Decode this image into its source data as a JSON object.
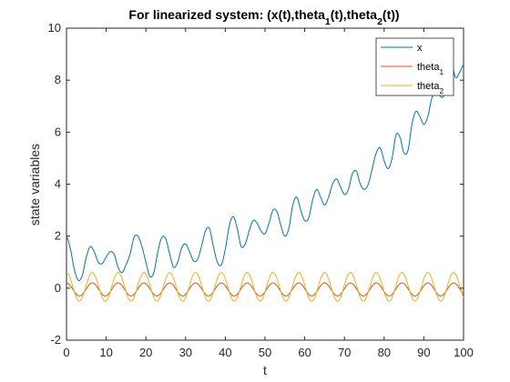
{
  "chart_data": {
    "type": "line",
    "title": "For linearized system: (x(t),theta_1(t),theta_2(t))",
    "xlabel": "t",
    "ylabel": "state variables",
    "xlim": [
      0,
      100
    ],
    "ylim": [
      -2,
      10
    ],
    "xticks": [
      "0",
      "10",
      "20",
      "30",
      "40",
      "50",
      "60",
      "70",
      "80",
      "90",
      "100"
    ],
    "yticks": [
      "-2",
      "0",
      "2",
      "4",
      "6",
      "8",
      "10"
    ],
    "grid": false,
    "legend_position": "top-right",
    "legend": [
      "x",
      "theta_1",
      "theta_2"
    ],
    "series": [
      {
        "name": "x",
        "color": "#0072BD",
        "x": [
          0,
          1,
          2,
          3,
          4,
          5,
          6,
          7,
          8,
          9,
          10,
          11,
          12,
          13,
          14,
          15,
          16,
          17,
          18,
          19,
          20,
          21,
          22,
          23,
          24,
          25,
          26,
          27,
          28,
          29,
          30,
          31,
          32,
          33,
          34,
          35,
          36,
          37,
          38,
          39,
          40,
          41,
          42,
          43,
          44,
          45,
          46,
          47,
          48,
          49,
          50,
          51,
          52,
          53,
          54,
          55,
          56,
          57,
          58,
          59,
          60,
          61,
          62,
          63,
          64,
          65,
          66,
          67,
          68,
          69,
          70,
          71,
          72,
          73,
          74,
          75,
          76,
          77,
          78,
          79,
          80,
          81,
          82,
          83,
          84,
          85,
          86,
          87,
          88,
          89,
          90,
          91,
          92,
          93,
          94,
          95,
          96,
          97,
          98,
          99,
          100
        ],
        "y": [
          2.0,
          1.5,
          0.7,
          0.3,
          0.5,
          1.2,
          1.6,
          1.4,
          1.0,
          0.95,
          1.2,
          1.4,
          1.3,
          0.8,
          0.6,
          0.9,
          1.3,
          1.95,
          2.0,
          1.6,
          1.0,
          0.45,
          0.6,
          1.4,
          1.95,
          1.9,
          1.3,
          0.8,
          1.0,
          1.55,
          1.7,
          1.4,
          1.05,
          1.1,
          1.6,
          2.2,
          2.3,
          1.6,
          1.0,
          0.9,
          1.5,
          2.4,
          2.75,
          2.3,
          1.6,
          1.7,
          2.2,
          2.6,
          2.5,
          2.2,
          2.1,
          2.5,
          3.0,
          2.95,
          2.4,
          2.0,
          2.3,
          3.2,
          3.5,
          3.0,
          2.6,
          2.7,
          3.4,
          3.8,
          3.5,
          3.2,
          3.5,
          4.0,
          4.2,
          3.9,
          3.6,
          3.8,
          4.4,
          4.5,
          4.0,
          3.8,
          4.0,
          4.6,
          5.2,
          5.4,
          4.9,
          4.6,
          5.0,
          5.9,
          5.8,
          5.2,
          5.3,
          6.3,
          6.8,
          6.6,
          6.3,
          6.6,
          7.3,
          7.6,
          7.4,
          7.4,
          8.2,
          8.6,
          8.1,
          8.3,
          8.6
        ]
      },
      {
        "name": "theta_1",
        "color": "#D95319",
        "amplitude": 0.25,
        "period": 6.5,
        "phase_deg": 90,
        "offset": -0.05
      },
      {
        "name": "theta_2",
        "color": "#EDB120",
        "amplitude": 0.55,
        "period": 6.5,
        "phase_deg": 90,
        "offset": 0.05
      }
    ]
  }
}
